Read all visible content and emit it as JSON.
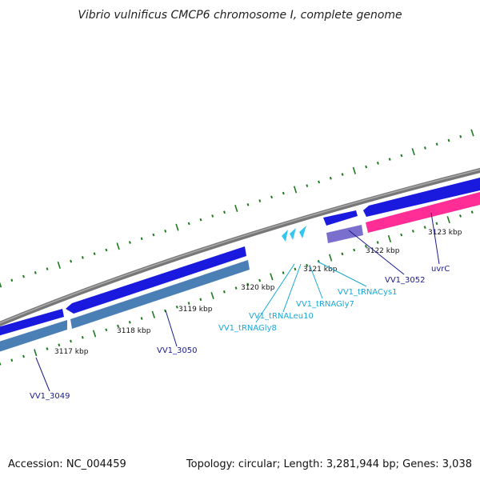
{
  "title": "Vibrio vulnificus CMCP6 chromosome I, complete genome",
  "accession": "Accession: NC_004459",
  "topology": "Topology: circular; Length: 3,281,944 bp; Genes: 3,038",
  "scale_labels": [
    "3117 kbp",
    "3118 kbp",
    "3119 kbp",
    "3120 kbp",
    "3121 kbp",
    "3122 kbp",
    "3123 kbp"
  ],
  "gene_labels": {
    "vv1_3049": "VV1_3049",
    "vv1_3050": "VV1_3050",
    "trnagly8": "VV1_tRNAGly8",
    "trnaleu10": "VV1_tRNALeu10",
    "trnagly7": "VV1_tRNAGly7",
    "trnacys1": "VV1_tRNACys1",
    "vv1_3052": "VV1_3052",
    "uvrc": "uvrC"
  },
  "colors": {
    "backbone": "#808080",
    "cds_forward": "#1a1adf",
    "cds_reverse": "#4a7fb5",
    "trna": "#33c6ef",
    "uvrc_gene": "#ff2d95",
    "misc_feature": "#7a6fcc",
    "tick": "#1f7a1f",
    "label_dark": "#1a1a8c",
    "label_light": "#1aa8d8"
  }
}
